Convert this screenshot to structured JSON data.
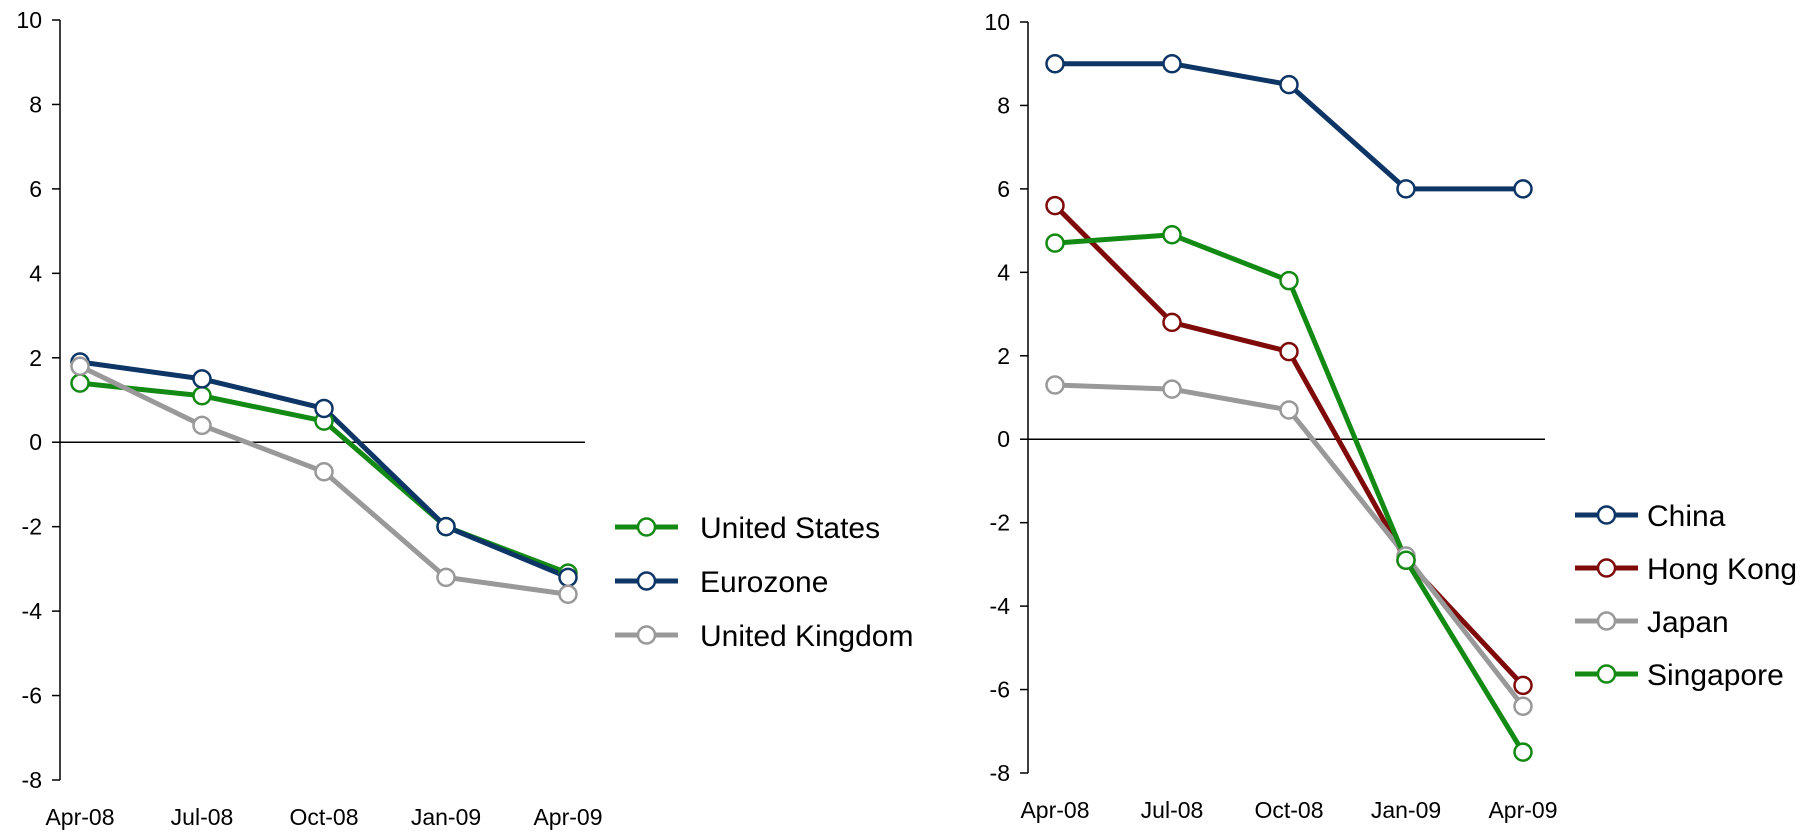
{
  "chart_data": [
    {
      "type": "line",
      "categories": [
        "Apr-08",
        "Jul-08",
        "Oct-08",
        "Jan-09",
        "Apr-09"
      ],
      "ylim": [
        -8,
        10
      ],
      "yticks": [
        "10",
        "8",
        "6",
        "4",
        "2",
        "0",
        "-2",
        "-4",
        "-6",
        "-8"
      ],
      "grid": false,
      "legend_position": "right",
      "series": [
        {
          "name": "United States",
          "color": "#138a13",
          "values": [
            1.4,
            1.1,
            0.5,
            -2.0,
            -3.1
          ]
        },
        {
          "name": "Eurozone",
          "color": "#0d3566",
          "values": [
            1.9,
            1.5,
            0.8,
            -2.0,
            -3.2
          ]
        },
        {
          "name": "United Kingdom",
          "color": "#999999",
          "values": [
            1.8,
            0.4,
            -0.7,
            -3.2,
            -3.6
          ]
        }
      ]
    },
    {
      "type": "line",
      "categories": [
        "Apr-08",
        "Jul-08",
        "Oct-08",
        "Jan-09",
        "Apr-09"
      ],
      "ylim": [
        -8,
        10
      ],
      "yticks": [
        "10",
        "8",
        "6",
        "4",
        "2",
        "0",
        "-2",
        "-4",
        "-6",
        "-8"
      ],
      "grid": false,
      "legend_position": "right",
      "series": [
        {
          "name": "China",
          "color": "#0d3566",
          "values": [
            9.0,
            9.0,
            8.5,
            6.0,
            6.0
          ]
        },
        {
          "name": "Hong Kong",
          "color": "#7f0a0a",
          "values": [
            5.6,
            2.8,
            2.1,
            -2.9,
            -5.9
          ]
        },
        {
          "name": "Japan",
          "color": "#999999",
          "values": [
            1.3,
            1.2,
            0.7,
            -2.8,
            -6.4
          ]
        },
        {
          "name": "Singapore",
          "color": "#138a13",
          "values": [
            4.7,
            4.9,
            3.8,
            -2.9,
            -7.5
          ]
        }
      ]
    }
  ]
}
